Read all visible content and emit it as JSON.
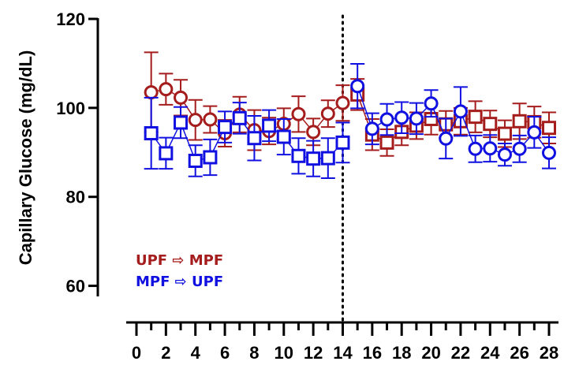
{
  "chart_data": {
    "type": "line",
    "xlabel": "",
    "ylabel": "Capillary Glucose (mg/dL)",
    "xlim": [
      0,
      28
    ],
    "ylim": [
      50,
      120
    ],
    "yticks": [
      60,
      80,
      100,
      120
    ],
    "xticks": [
      0,
      2,
      4,
      6,
      8,
      10,
      12,
      14,
      16,
      18,
      20,
      22,
      24,
      26,
      28
    ],
    "grid": false,
    "reference_line": {
      "x": 14,
      "style": "dotted"
    },
    "legend": {
      "placement": "bottom-left",
      "items": [
        {
          "label": "UPF ⇨ MPF",
          "color": "#a51c1c"
        },
        {
          "label": "MPF ⇨ UPF",
          "color": "#1010e0"
        }
      ]
    },
    "series": [
      {
        "name": "UPF ⇨ MPF",
        "color": "#a51c1c",
        "segments": [
          {
            "marker": "circle",
            "x": [
              1,
              2,
              3,
              4,
              5,
              6,
              7,
              8,
              9,
              10,
              11,
              12,
              13,
              14
            ],
            "y": [
              103.5,
              104.2,
              102.3,
              97.3,
              97.4,
              94.3,
              98.5,
              95.0,
              94.8,
              96.4,
              98.6,
              94.6,
              98.7,
              101.1
            ],
            "err": [
              9.0,
              3.5,
              4.0,
              4.5,
              3.0,
              3.0,
              4.0,
              4.5,
              3.0,
              3.5,
              4.0,
              3.0,
              3.0,
              4.0
            ]
          },
          {
            "marker": "square",
            "x": [
              15,
              16,
              17,
              18,
              19,
              20,
              21,
              22,
              23,
              24,
              25,
              26,
              27,
              28
            ],
            "y": [
              103.0,
              94.0,
              92.2,
              94.6,
              96.0,
              97.5,
              96.3,
              97.0,
              98.0,
              96.4,
              94.2,
              97.0,
              96.8,
              95.5
            ],
            "err": [
              3.5,
              3.5,
              3.0,
              3.0,
              3.0,
              3.5,
              3.0,
              3.0,
              3.5,
              3.0,
              3.0,
              4.0,
              3.5,
              3.5
            ]
          }
        ]
      },
      {
        "name": "MPF ⇨ UPF",
        "color": "#1010e0",
        "segments": [
          {
            "marker": "square",
            "x": [
              1,
              2,
              3,
              4,
              5,
              6,
              7,
              8,
              9,
              10,
              11,
              12,
              13,
              14
            ],
            "y": [
              94.3,
              89.8,
              96.7,
              88.1,
              88.9,
              95.7,
              97.7,
              93.2,
              96.0,
              93.5,
              89.2,
              88.6,
              88.7,
              92.2
            ],
            "err": [
              8.0,
              3.5,
              3.5,
              3.5,
              4.0,
              3.5,
              3.5,
              5.0,
              3.5,
              4.0,
              4.0,
              4.0,
              4.5,
              4.5
            ]
          },
          {
            "marker": "circle",
            "x": [
              15,
              16,
              17,
              18,
              19,
              20,
              21,
              22,
              23,
              24,
              25,
              26,
              27,
              28
            ],
            "y": [
              104.9,
              95.3,
              97.4,
              97.8,
              97.6,
              101.0,
              93.1,
              99.2,
              90.8,
              90.9,
              89.5,
              90.8,
              94.5,
              89.9
            ],
            "err": [
              5.0,
              3.5,
              3.5,
              3.5,
              3.5,
              3.0,
              4.5,
              5.5,
              3.0,
              3.0,
              2.5,
              3.0,
              3.5,
              3.5
            ]
          }
        ]
      }
    ]
  }
}
